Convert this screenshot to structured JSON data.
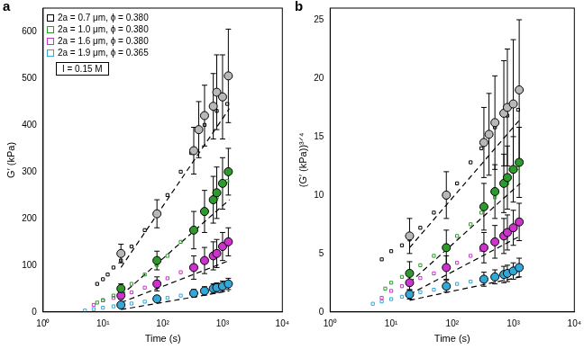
{
  "chart_data": [
    {
      "type": "scatter",
      "panel_label": "a",
      "x_label": "Time (s)",
      "y_label": "G′ (kPa)",
      "log": "x",
      "grid": false,
      "legend": "top-left",
      "annotation": "I = 0.15 M",
      "xlim": [
        1,
        10000
      ],
      "xticks": [
        {
          "value": 1,
          "label": "10⁰"
        },
        {
          "value": 10,
          "label": "10¹"
        },
        {
          "value": 100,
          "label": "10²"
        },
        {
          "value": 1000,
          "label": "10³"
        },
        {
          "value": 10000,
          "label": "10⁴"
        }
      ],
      "ylim": [
        0,
        650
      ],
      "yticks": [
        0,
        100,
        200,
        300,
        400,
        500,
        600
      ],
      "series": [
        {
          "name": "2a = 0.7 μm, ϕ = 0.380",
          "color": "#000000",
          "marker": "square",
          "x": [
            8,
            10,
            12,
            15,
            20,
            30,
            50,
            80,
            120,
            200,
            300,
            500,
            800,
            1200
          ],
          "values": [
            60,
            70,
            80,
            95,
            110,
            140,
            175,
            210,
            250,
            300,
            340,
            400,
            430,
            445
          ],
          "means": {
            "marker": "circle",
            "x": [
              20,
              80,
              330,
              400,
              500,
              700,
              800,
              1000,
              1250
            ],
            "values": [
              125,
              210,
              345,
              390,
              420,
              440,
              470,
              460,
              505
            ],
            "errors": [
              20,
              30,
              50,
              60,
              65,
              70,
              80,
              90,
              100
            ]
          },
          "fit": {
            "line_style": "dashed",
            "x": [
              20,
              1300
            ],
            "values": [
              95,
              435
            ]
          }
        },
        {
          "name": "2a = 1.0 μm, ϕ = 0.380",
          "color": "#2e9a2e",
          "marker": "square",
          "x": [
            8,
            10,
            15,
            20,
            30,
            50,
            80,
            120,
            200,
            300,
            500,
            800,
            1200
          ],
          "values": [
            20,
            25,
            35,
            45,
            60,
            80,
            100,
            120,
            150,
            175,
            210,
            245,
            280
          ],
          "means": {
            "marker": "circle",
            "x": [
              20,
              80,
              330,
              500,
              700,
              800,
              1000,
              1250
            ],
            "values": [
              50,
              110,
              175,
              215,
              240,
              255,
              275,
              300
            ],
            "errors": [
              10,
              20,
              40,
              45,
              50,
              55,
              55,
              50
            ]
          },
          "fit": {
            "line_style": "dashed",
            "x": [
              20,
              1300
            ],
            "values": [
              35,
              240
            ]
          }
        },
        {
          "name": "2a = 1.6 μm, ϕ = 0.380",
          "color": "#cc33cc",
          "marker": "square",
          "x": [
            7,
            10,
            15,
            20,
            30,
            50,
            80,
            120,
            200,
            300,
            500,
            800,
            1200
          ],
          "values": [
            15,
            25,
            30,
            35,
            42,
            52,
            62,
            72,
            85,
            95,
            110,
            125,
            145
          ],
          "means": {
            "marker": "circle",
            "x": [
              20,
              80,
              330,
              500,
              700,
              800,
              1000,
              1250
            ],
            "values": [
              35,
              60,
              95,
              110,
              120,
              125,
              140,
              150
            ],
            "errors": [
              8,
              15,
              25,
              28,
              30,
              30,
              30,
              30
            ]
          },
          "fit": {
            "line_style": "dashed",
            "x": [
              20,
              1300
            ],
            "values": [
              20,
              110
            ]
          }
        },
        {
          "name": "2a = 1.9 μm, ϕ = 0.365",
          "color": "#33a8d8",
          "marker": "square",
          "x": [
            5,
            7,
            10,
            15,
            20,
            30,
            50,
            80,
            120,
            200,
            300,
            500,
            800,
            1200
          ],
          "values": [
            3,
            6,
            9,
            12,
            14,
            18,
            22,
            26,
            30,
            35,
            39,
            45,
            50,
            57
          ],
          "means": {
            "marker": "circle",
            "x": [
              20,
              80,
              330,
              500,
              700,
              800,
              1000,
              1250
            ],
            "values": [
              15,
              28,
              40,
              45,
              50,
              52,
              55,
              60
            ],
            "errors": [
              4,
              6,
              8,
              9,
              10,
              10,
              11,
              12
            ]
          },
          "fit": {
            "line_style": "dashed",
            "x": [
              20,
              1300
            ],
            "values": [
              5,
              45
            ]
          }
        }
      ]
    },
    {
      "type": "scatter",
      "panel_label": "b",
      "x_label": "Time (s)",
      "y_label": "(G′ (kPa))³ᐟ⁴",
      "log": "x",
      "grid": false,
      "xlim": [
        1,
        10000
      ],
      "xticks": [
        {
          "value": 1,
          "label": "10⁰"
        },
        {
          "value": 10,
          "label": "10¹"
        },
        {
          "value": 100,
          "label": "10²"
        },
        {
          "value": 1000,
          "label": "10³"
        },
        {
          "value": 10000,
          "label": "10⁴"
        }
      ],
      "ylim": [
        0,
        26
      ],
      "yticks": [
        0,
        5,
        10,
        15,
        20,
        25
      ],
      "series": [
        {
          "color": "#000000",
          "marker": "square",
          "x": [
            7,
            10,
            15,
            20,
            30,
            50,
            80,
            120,
            200,
            300,
            500,
            800,
            1200
          ],
          "values": [
            4.5,
            5.2,
            5.7,
            6.2,
            7.2,
            8.5,
            9.8,
            11,
            12.8,
            14,
            15.8,
            16.8,
            17.3
          ],
          "means": {
            "marker": "circle",
            "x": [
              20,
              80,
              330,
              400,
              500,
              700,
              800,
              1000,
              1250
            ],
            "values": [
              6.5,
              10,
              14.5,
              15.2,
              16.2,
              17,
              17.5,
              17.8,
              19
            ],
            "errors": [
              1.5,
              2,
              3,
              3.5,
              4,
              4.5,
              5,
              5.5,
              6
            ]
          },
          "fit": {
            "line_style": "dashed",
            "x": [
              20,
              1300
            ],
            "values": [
              5.5,
              16.5
            ]
          }
        },
        {
          "color": "#2e9a2e",
          "marker": "square",
          "x": [
            8,
            10,
            15,
            20,
            30,
            50,
            80,
            120,
            200,
            300,
            500,
            800,
            1200
          ],
          "values": [
            2,
            2.5,
            3,
            3.3,
            4,
            4.8,
            5.6,
            6.5,
            7.5,
            8.5,
            9.8,
            11,
            12.3
          ],
          "means": {
            "marker": "circle",
            "x": [
              20,
              80,
              330,
              500,
              700,
              800,
              1000,
              1250
            ],
            "values": [
              3.3,
              5.5,
              9,
              10.3,
              11,
              11.5,
              12.2,
              12.8
            ],
            "errors": [
              1,
              1.5,
              2,
              2.3,
              2.5,
              2.7,
              2.8,
              3
            ]
          },
          "fit": {
            "line_style": "dashed",
            "x": [
              20,
              1300
            ],
            "values": [
              2.5,
              11
            ]
          }
        },
        {
          "color": "#cc33cc",
          "marker": "square",
          "x": [
            7,
            10,
            15,
            20,
            30,
            50,
            80,
            120,
            200,
            300,
            500,
            800,
            1200
          ],
          "values": [
            1.2,
            1.8,
            2.2,
            2.5,
            2.9,
            3.3,
            3.8,
            4.2,
            4.8,
            5.3,
            6,
            6.7,
            7.5
          ],
          "means": {
            "marker": "circle",
            "x": [
              20,
              80,
              330,
              500,
              700,
              800,
              1000,
              1250
            ],
            "values": [
              2.5,
              3.8,
              5.5,
              6,
              6.5,
              6.8,
              7.2,
              7.7
            ],
            "errors": [
              0.6,
              1,
              1.3,
              1.4,
              1.5,
              1.5,
              1.5,
              1.6
            ]
          },
          "fit": {
            "line_style": "dashed",
            "x": [
              20,
              1300
            ],
            "values": [
              1.5,
              6.5
            ]
          }
        },
        {
          "color": "#33a8d8",
          "marker": "square",
          "x": [
            5,
            7,
            10,
            15,
            20,
            30,
            50,
            80,
            120,
            200,
            300,
            500,
            800,
            1200
          ],
          "values": [
            0.7,
            0.9,
            1.1,
            1.3,
            1.5,
            1.7,
            1.9,
            2.1,
            2.4,
            2.6,
            2.8,
            3,
            3.3,
            3.6
          ],
          "means": {
            "marker": "circle",
            "x": [
              20,
              80,
              330,
              500,
              700,
              800,
              1000,
              1250
            ],
            "values": [
              1.5,
              2.2,
              2.8,
              3,
              3.2,
              3.3,
              3.5,
              3.8
            ],
            "errors": [
              0.4,
              0.5,
              0.6,
              0.6,
              0.7,
              0.7,
              0.7,
              0.8
            ]
          },
          "fit": {
            "line_style": "dashed",
            "x": [
              20,
              1300
            ],
            "values": [
              1,
              3
            ]
          }
        }
      ]
    }
  ]
}
